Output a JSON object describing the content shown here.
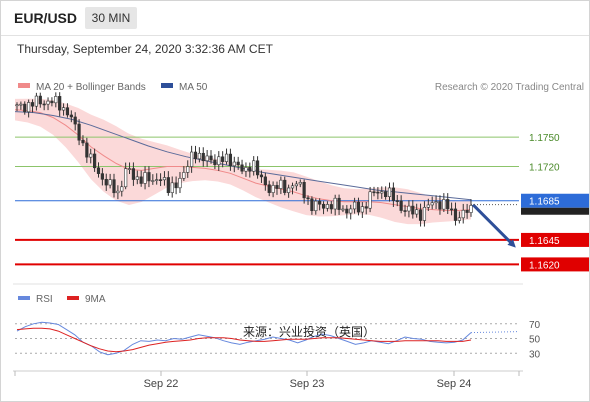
{
  "header": {
    "symbol": "EUR/USD",
    "timeframe": "30 MIN",
    "timestamp": "Thursday, September 24, 2020 3:32:36 AM CET"
  },
  "legend": {
    "ma20_label": "MA 20 + Bollinger Bands",
    "ma50_label": "MA 50",
    "credit": "Research © 2020 Trading Central",
    "rsi_label": "RSI",
    "rsi_ma_label": "9MA"
  },
  "watermark": "来源：兴业投资（英国）",
  "colors": {
    "candle": "#333333",
    "ma20": "#f08a8a",
    "bollinger_fill": "#fbd9d9",
    "ma50": "#5b6b9a",
    "resistance": "#8cc46a",
    "support": "#e00000",
    "current": "#2d6cd8",
    "arrow": "#2e4f99",
    "rsi": "#6688dd",
    "rsi_ma": "#dd2222"
  },
  "chart_data": [
    {
      "type": "candlestick",
      "x_ticks": [
        "Sep 22",
        "Sep 23",
        "Sep 24"
      ],
      "ylim": [
        1.16,
        1.1795
      ],
      "ohlc_path": [
        1.178,
        1.1782,
        1.1785,
        1.1786,
        1.1787,
        1.1783,
        1.1776,
        1.1758,
        1.174,
        1.1722,
        1.171,
        1.17,
        1.1693,
        1.1718,
        1.1707,
        1.171,
        1.1703,
        1.1712,
        1.1695,
        1.1705,
        1.1712,
        1.1738,
        1.1726,
        1.1728,
        1.1726,
        1.1727,
        1.1725,
        1.1711,
        1.1727,
        1.1705,
        1.1698,
        1.17,
        1.1697,
        1.1703,
        1.1696,
        1.1679,
        1.168,
        1.1681,
        1.168,
        1.1675,
        1.1678,
        1.1676,
        1.169,
        1.1694,
        1.1695,
        1.1684,
        1.1677,
        1.1673,
        1.1672,
        1.168,
        1.1684,
        1.1681,
        1.1668,
        1.1672,
        1.1675
      ],
      "moving_averages": [
        {
          "name": "MA 20",
          "values": [
            1.1778,
            1.1777,
            1.1775,
            1.177,
            1.1762,
            1.1752,
            1.174,
            1.1731,
            1.1723,
            1.1717,
            1.1716,
            1.1718,
            1.172,
            1.172,
            1.1719,
            1.1718,
            1.1716,
            1.1713,
            1.1708,
            1.1703,
            1.17,
            1.1697,
            1.1694,
            1.169,
            1.1687,
            1.1685,
            1.1684,
            1.1684,
            1.1684,
            1.1683,
            1.1681,
            1.1679,
            1.1677,
            1.1676,
            1.1675,
            1.1675,
            1.1676
          ]
        },
        {
          "name": "MA 50",
          "values": [
            1.1776,
            1.1775,
            1.1772,
            1.1768,
            1.1762,
            1.1755,
            1.1748,
            1.1741,
            1.1735,
            1.173,
            1.1726,
            1.1722,
            1.1718,
            1.1714,
            1.1711,
            1.1708,
            1.1705,
            1.1702,
            1.1699,
            1.1696,
            1.1694,
            1.1692,
            1.169,
            1.1688,
            1.1686
          ]
        }
      ],
      "levels": [
        {
          "label": "1.1750",
          "value": 1.175,
          "kind": "resistance"
        },
        {
          "label": "1.1720",
          "value": 1.172,
          "kind": "resistance"
        },
        {
          "label": "1.1685",
          "value": 1.1685,
          "kind": "current"
        },
        {
          "label": "1.1645",
          "value": 1.1645,
          "kind": "support"
        },
        {
          "label": "1.1620",
          "value": 1.162,
          "kind": "support"
        }
      ],
      "forecast_arrow": {
        "from": 1.1681,
        "to": 1.164
      }
    },
    {
      "type": "line",
      "title": "RSI",
      "ylim": [
        10,
        90
      ],
      "y_ticks": [
        "70",
        "50",
        "30"
      ],
      "series": [
        {
          "name": "RSI",
          "values": [
            60,
            66,
            70,
            72,
            71,
            69,
            62,
            55,
            45,
            40,
            32,
            28,
            30,
            34,
            42,
            47,
            46,
            48,
            47,
            50,
            49,
            52,
            55,
            53,
            51,
            47,
            44,
            42,
            45,
            47,
            49,
            52,
            50,
            48,
            44,
            48,
            53,
            56,
            54,
            50,
            46,
            42,
            44,
            47,
            45,
            43,
            47,
            52,
            50,
            49,
            46,
            45,
            44,
            45,
            48,
            58
          ]
        },
        {
          "name": "9MA",
          "values": [
            62,
            63,
            64,
            64,
            63,
            60,
            55,
            50,
            45,
            40,
            36,
            33,
            32,
            33,
            35,
            38,
            41,
            43,
            45,
            46,
            47,
            48,
            50,
            51,
            51,
            51,
            50,
            48,
            47,
            46,
            46,
            47,
            48,
            49,
            49,
            49,
            50,
            51,
            51,
            51,
            50,
            49,
            48,
            47,
            46,
            46,
            46,
            47,
            47,
            47,
            47,
            47,
            46,
            46,
            46,
            48
          ]
        }
      ]
    }
  ]
}
